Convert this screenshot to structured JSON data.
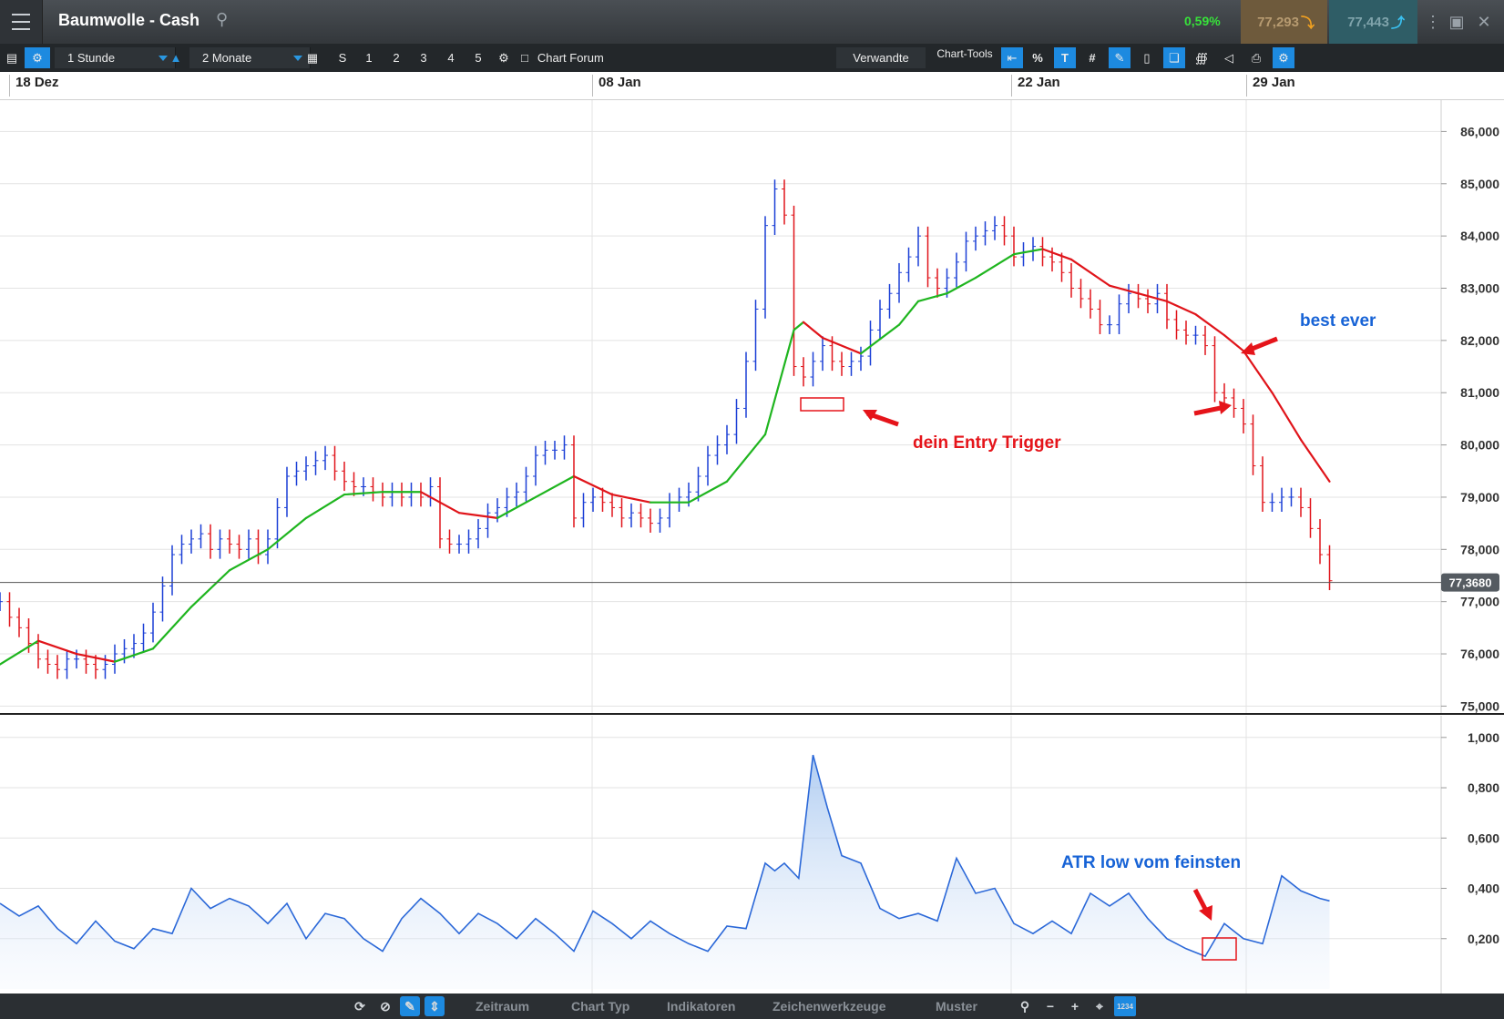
{
  "window": {
    "title": "Baumwolle - Cash",
    "change_pct": "0,59%",
    "sell_price": "77,293",
    "buy_price": "77,443"
  },
  "toolbar": {
    "interval": "1 Stunde",
    "range": "2 Monate",
    "presets": [
      "S",
      "1",
      "2",
      "3",
      "4",
      "5"
    ],
    "forum": "Chart Forum",
    "related": "Verwandte",
    "tools_label": "Chart-Tools"
  },
  "bottom_tabs": [
    "Zeitraum",
    "Chart Typ",
    "Indikatoren",
    "Zeichenwerkzeuge",
    "Muster"
  ],
  "bottom_badge": "1234",
  "colors": {
    "up": "#1b3fd6",
    "down": "#e0141a",
    "ma_up": "#1fb51f",
    "ma_down": "#e0141a",
    "atr": "#2b68d8",
    "annotation_red": "#e5141a",
    "annotation_blue": "#1763d6"
  },
  "chart_data": [
    {
      "type": "line",
      "title": "Baumwolle - Cash",
      "x_tick_labels": [
        "18 Dez",
        "08 Jan",
        "22 Jan",
        "29 Jan"
      ],
      "y_tick_labels": [
        "86,000",
        "85,000",
        "84,000",
        "83,000",
        "82,000",
        "81,000",
        "80,000",
        "79,000",
        "78,000",
        "77,000",
        "76,000",
        "75,000"
      ],
      "ylim": [
        74.85,
        86.6
      ],
      "current_price_label": "77,3680",
      "current_price": 77.368,
      "series": [
        {
          "style": "ohlc-bars",
          "x": [
            0,
            10,
            20,
            30,
            40,
            50,
            60,
            70,
            80,
            90,
            100,
            110,
            120,
            130,
            140,
            150,
            160,
            170,
            180,
            190,
            200,
            210,
            220,
            230,
            240,
            250,
            260,
            270,
            280,
            290,
            300,
            310,
            320,
            330,
            340,
            350,
            360,
            370,
            380,
            390,
            400,
            410,
            420,
            430,
            440,
            450,
            460,
            470,
            480,
            490,
            500,
            510,
            520,
            530,
            540,
            550,
            560,
            570,
            580,
            590,
            600,
            610,
            620,
            630,
            640,
            650,
            660,
            670,
            680,
            690,
            700,
            710,
            720,
            730,
            740,
            750,
            760,
            770,
            780,
            790,
            800,
            810,
            820,
            830,
            840,
            850,
            860,
            870,
            880,
            890,
            900,
            910,
            920,
            930,
            940,
            950,
            960,
            970,
            980,
            990,
            1000,
            1010,
            1020,
            1030,
            1040,
            1050,
            1060,
            1070,
            1080,
            1090,
            1100,
            1110,
            1120,
            1130,
            1140,
            1150,
            1160,
            1170,
            1180,
            1190,
            1200,
            1210,
            1220,
            1230,
            1240,
            1250,
            1260,
            1270,
            1280,
            1290,
            1300,
            1310,
            1320,
            1330,
            1340,
            1350,
            1360,
            1370,
            1380,
            1390
          ],
          "values": [
            77.0,
            76.7,
            76.5,
            76.2,
            75.9,
            75.8,
            75.7,
            75.9,
            75.9,
            75.8,
            75.7,
            75.8,
            76.0,
            76.1,
            76.2,
            76.4,
            76.8,
            77.3,
            77.9,
            78.1,
            78.2,
            78.3,
            78.0,
            78.2,
            78.1,
            78.0,
            78.2,
            77.9,
            78.2,
            78.8,
            79.4,
            79.5,
            79.6,
            79.7,
            79.8,
            79.5,
            79.3,
            79.2,
            79.2,
            79.1,
            79.0,
            79.1,
            79.0,
            79.1,
            79.0,
            79.2,
            78.2,
            78.1,
            78.1,
            78.2,
            78.4,
            78.7,
            78.8,
            79.0,
            79.1,
            79.4,
            79.8,
            79.9,
            79.9,
            80.0,
            78.6,
            78.9,
            79.0,
            78.9,
            78.8,
            78.6,
            78.7,
            78.6,
            78.5,
            78.6,
            78.9,
            79.0,
            79.1,
            79.4,
            79.8,
            80.0,
            80.2,
            80.7,
            81.6,
            82.6,
            84.2,
            84.9,
            84.4,
            81.5,
            81.3,
            81.6,
            81.9,
            81.6,
            81.5,
            81.6,
            81.7,
            82.2,
            82.6,
            82.9,
            83.3,
            83.6,
            84.0,
            83.2,
            83.0,
            83.2,
            83.5,
            83.9,
            84.0,
            84.1,
            84.2,
            84.0,
            83.6,
            83.7,
            83.8,
            83.6,
            83.5,
            83.3,
            83.0,
            82.8,
            82.6,
            82.3,
            82.3,
            82.7,
            82.9,
            82.8,
            82.7,
            82.9,
            82.4,
            82.2,
            82.1,
            82.1,
            81.9,
            81.0,
            80.9,
            80.7,
            80.4,
            79.6,
            78.9,
            78.9,
            79.0,
            79.0,
            78.8,
            78.4,
            77.9,
            77.4
          ]
        },
        {
          "style": "moving-average",
          "x": [
            0,
            40,
            80,
            120,
            160,
            200,
            240,
            280,
            320,
            360,
            400,
            440,
            480,
            520,
            560,
            600,
            640,
            680,
            720,
            760,
            800,
            830,
            840,
            860,
            900,
            940,
            960,
            990,
            1020,
            1060,
            1090,
            1120,
            1160,
            1190,
            1220,
            1250,
            1280,
            1300,
            1330,
            1360,
            1390
          ],
          "values": [
            75.8,
            76.25,
            76.0,
            75.85,
            76.1,
            76.9,
            77.6,
            78.0,
            78.6,
            79.05,
            79.1,
            79.1,
            78.7,
            78.6,
            79.0,
            79.4,
            79.05,
            78.9,
            78.9,
            79.3,
            80.2,
            82.2,
            82.35,
            82.05,
            81.75,
            82.3,
            82.75,
            82.9,
            83.2,
            83.65,
            83.75,
            83.55,
            83.05,
            82.9,
            82.75,
            82.5,
            82.1,
            81.8,
            81.0,
            80.1,
            79.3
          ]
        }
      ]
    },
    {
      "type": "area",
      "y_tick_labels": [
        "1,000",
        "0,800",
        "0,600",
        "0,400",
        "0,200"
      ],
      "ylim": [
        0.0,
        1.05
      ],
      "series": [
        {
          "style": "atr-line",
          "x": [
            0,
            20,
            40,
            60,
            80,
            100,
            120,
            140,
            160,
            180,
            200,
            220,
            240,
            260,
            280,
            300,
            320,
            340,
            360,
            380,
            400,
            420,
            440,
            460,
            480,
            500,
            520,
            540,
            560,
            580,
            600,
            620,
            640,
            660,
            680,
            700,
            720,
            740,
            760,
            780,
            800,
            810,
            820,
            835,
            850,
            865,
            880,
            900,
            920,
            940,
            960,
            980,
            1000,
            1020,
            1040,
            1060,
            1080,
            1100,
            1120,
            1140,
            1160,
            1180,
            1200,
            1220,
            1240,
            1260,
            1280,
            1300,
            1320,
            1340,
            1360,
            1380,
            1390
          ],
          "values": [
            0.34,
            0.29,
            0.33,
            0.24,
            0.18,
            0.27,
            0.19,
            0.16,
            0.24,
            0.22,
            0.4,
            0.32,
            0.36,
            0.33,
            0.26,
            0.34,
            0.2,
            0.3,
            0.28,
            0.2,
            0.15,
            0.28,
            0.36,
            0.3,
            0.22,
            0.3,
            0.26,
            0.2,
            0.28,
            0.22,
            0.15,
            0.31,
            0.26,
            0.2,
            0.27,
            0.22,
            0.18,
            0.15,
            0.25,
            0.24,
            0.5,
            0.47,
            0.5,
            0.44,
            0.93,
            0.72,
            0.53,
            0.5,
            0.32,
            0.28,
            0.3,
            0.27,
            0.52,
            0.38,
            0.4,
            0.26,
            0.22,
            0.27,
            0.22,
            0.38,
            0.33,
            0.38,
            0.28,
            0.2,
            0.16,
            0.13,
            0.26,
            0.2,
            0.18,
            0.45,
            0.39,
            0.36,
            0.35
          ]
        }
      ]
    }
  ],
  "annotations": {
    "entry": "dein Entry Trigger",
    "best": "best ever",
    "atr": "ATR low vom feinsten"
  }
}
